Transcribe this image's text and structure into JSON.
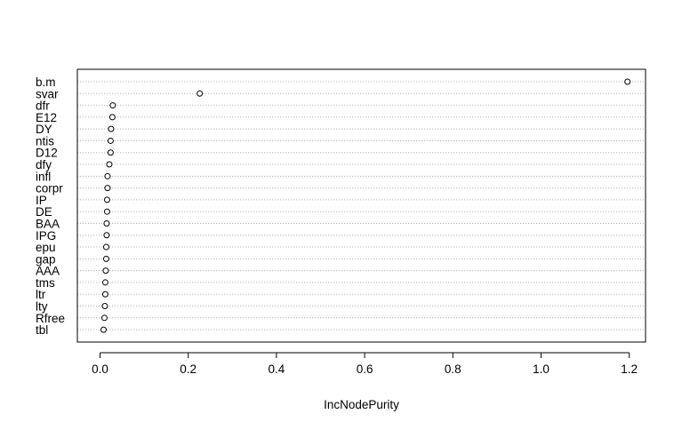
{
  "chart_data": {
    "type": "scatter",
    "subtype": "dotchart",
    "title": "",
    "xlabel": "IncNodePurity",
    "ylabel": "",
    "xlim": [
      -0.05,
      1.23
    ],
    "xticks": [
      0.0,
      0.2,
      0.4,
      0.6,
      0.8,
      1.0,
      1.2
    ],
    "xtick_labels": [
      "0.0",
      "0.2",
      "0.4",
      "0.6",
      "0.8",
      "1.0",
      "1.2"
    ],
    "grid": "dotted horizontal lines at each category",
    "legend": "none",
    "categories": [
      "b.m",
      "svar",
      "dfr",
      "E12",
      "DY",
      "ntis",
      "D12",
      "dfy",
      "infl",
      "corpr",
      "IP",
      "DE",
      "BAA",
      "IPG",
      "epu",
      "gap",
      "AAA",
      "tms",
      "ltr",
      "lty",
      "Rfree",
      "tbl"
    ],
    "values": [
      1.196,
      0.226,
      0.029,
      0.028,
      0.025,
      0.024,
      0.024,
      0.021,
      0.017,
      0.017,
      0.016,
      0.016,
      0.015,
      0.015,
      0.014,
      0.014,
      0.013,
      0.012,
      0.012,
      0.011,
      0.01,
      0.008
    ]
  }
}
